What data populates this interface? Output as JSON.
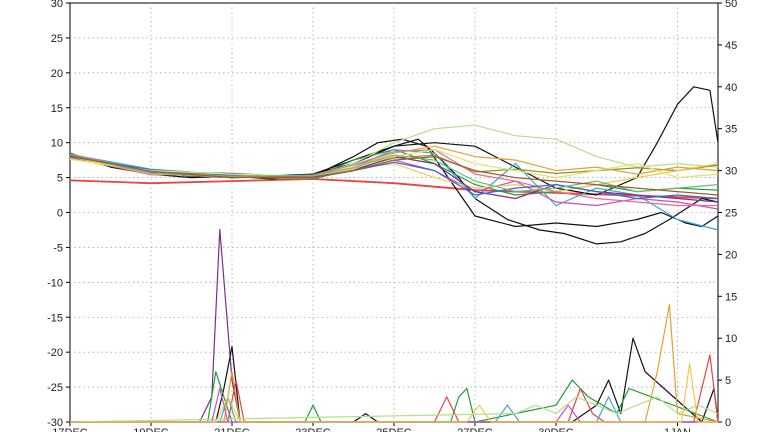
{
  "chart_data": {
    "type": "line",
    "title": "",
    "xlabel": "",
    "ylabel": "",
    "y_left": {
      "range": [
        -30,
        30
      ],
      "ticks": [
        30,
        25,
        20,
        15,
        10,
        5,
        0,
        -5,
        -10,
        -15,
        -20,
        -25,
        -30
      ]
    },
    "y_right": {
      "range": [
        0,
        50
      ],
      "ticks": [
        50,
        45,
        40,
        35,
        30,
        25,
        20,
        15,
        10,
        5,
        0
      ]
    },
    "x_range": [
      0,
      16
    ],
    "x_ticks": [
      {
        "x": 0,
        "label": "17DEC"
      },
      {
        "x": 2,
        "label": "19DEC"
      },
      {
        "x": 4,
        "label": "21DEC"
      },
      {
        "x": 6,
        "label": "23DEC"
      },
      {
        "x": 8,
        "label": "25DEC"
      },
      {
        "x": 10,
        "label": "27DEC"
      },
      {
        "x": 12,
        "label": "30DEC"
      },
      {
        "x": 15,
        "label": "1JAN"
      }
    ],
    "grid": true,
    "legend": "none",
    "upper_series": [
      {
        "color": "#e8433f",
        "x": [
          0,
          2,
          4,
          6,
          8,
          10,
          12,
          14,
          16
        ],
        "y": [
          4.6,
          4.2,
          4.5,
          4.8,
          4.2,
          3.2,
          2.8,
          2.4,
          2.0
        ]
      },
      {
        "color": "#111111",
        "x": [
          0,
          1,
          2,
          3,
          4,
          5,
          6,
          7,
          8,
          8.6,
          9,
          9.6,
          10,
          10.8,
          11.6,
          12.2,
          13,
          13.6,
          14.2,
          14.8,
          15.2,
          15.6,
          16
        ],
        "y": [
          8.5,
          6.5,
          5.5,
          5.0,
          5.2,
          4.8,
          5.5,
          7.0,
          9.5,
          10.5,
          8.5,
          5.0,
          2.0,
          -1.0,
          -2.5,
          -3.0,
          -4.5,
          -4.2,
          -3.0,
          -1.0,
          0.5,
          2.0,
          1.5
        ]
      },
      {
        "color": "#111111",
        "x": [
          0,
          1,
          2,
          3,
          4,
          5,
          6,
          7,
          7.6,
          8.2,
          8.8,
          9.4,
          10,
          11,
          12,
          13,
          14,
          14.6,
          15.2,
          15.6,
          16
        ],
        "y": [
          8.2,
          6.8,
          5.8,
          5.2,
          5.0,
          5.2,
          5.2,
          8.0,
          10.0,
          10.5,
          9.5,
          4.5,
          -0.5,
          -2.0,
          -1.5,
          -2.0,
          -1.0,
          0.0,
          -1.5,
          -2.0,
          -0.5
        ]
      },
      {
        "color": "#111111",
        "x": [
          0,
          2,
          4,
          6,
          7,
          8,
          9,
          10,
          11,
          12,
          13,
          14,
          14.5,
          15,
          15.4,
          15.8,
          16
        ],
        "y": [
          8.0,
          5.8,
          5.0,
          5.5,
          7.5,
          9.5,
          10.0,
          9.5,
          6.5,
          3.5,
          2.5,
          5.0,
          10.0,
          15.5,
          18.0,
          17.5,
          10.0
        ]
      },
      {
        "color": "#1f9e3a",
        "x": [
          0,
          2,
          4,
          6,
          7,
          8,
          9,
          10,
          11,
          12,
          13,
          14,
          15,
          16
        ],
        "y": [
          8.0,
          6.0,
          5.2,
          5.0,
          7.5,
          9.0,
          7.0,
          4.0,
          2.5,
          3.0,
          4.0,
          3.0,
          3.5,
          3.2
        ]
      },
      {
        "color": "#b4e08a",
        "x": [
          0,
          2,
          4,
          6,
          7,
          8,
          9,
          10,
          11,
          12,
          13,
          14,
          15,
          16
        ],
        "y": [
          7.8,
          5.6,
          5.0,
          5.2,
          7.0,
          10.0,
          12.0,
          12.5,
          11.0,
          10.5,
          8.0,
          6.5,
          7.0,
          6.5
        ]
      },
      {
        "color": "#3aa7d8",
        "x": [
          0,
          2,
          4,
          6,
          7,
          8,
          9,
          10,
          11,
          12,
          13,
          14,
          15,
          16
        ],
        "y": [
          8.3,
          6.2,
          5.4,
          5.2,
          6.5,
          9.0,
          8.5,
          2.0,
          7.0,
          1.0,
          3.5,
          2.5,
          -1.0,
          -2.5
        ]
      },
      {
        "color": "#c84fc0",
        "x": [
          0,
          2,
          4,
          6,
          7,
          8,
          9,
          10,
          11,
          12,
          13,
          14,
          15,
          16
        ],
        "y": [
          7.9,
          5.4,
          5.4,
          5.0,
          6.0,
          7.5,
          6.0,
          3.0,
          4.5,
          1.5,
          1.0,
          2.0,
          1.5,
          0.5
        ]
      },
      {
        "color": "#9b8a2e",
        "x": [
          0,
          2,
          4,
          6,
          7,
          8,
          9,
          10,
          11,
          12,
          13,
          14,
          15,
          16
        ],
        "y": [
          8.1,
          5.9,
          5.1,
          4.8,
          6.2,
          7.8,
          8.2,
          5.8,
          6.2,
          5.6,
          6.0,
          6.4,
          6.0,
          6.8
        ]
      },
      {
        "color": "#f2c94c",
        "x": [
          0,
          2,
          4,
          6,
          7,
          8,
          9,
          10,
          11,
          12,
          13,
          14,
          15,
          16
        ],
        "y": [
          8.0,
          5.5,
          5.3,
          5.1,
          6.2,
          7.0,
          5.0,
          3.5,
          4.0,
          3.0,
          4.0,
          5.0,
          6.0,
          7.0
        ]
      },
      {
        "color": "#e7a030",
        "x": [
          0,
          2,
          4,
          6,
          7,
          8,
          9,
          10,
          11,
          12,
          13,
          14,
          15,
          16
        ],
        "y": [
          7.7,
          5.7,
          5.0,
          5.3,
          6.5,
          8.5,
          9.5,
          8.0,
          7.5,
          6.0,
          6.5,
          5.5,
          6.5,
          6.0
        ]
      },
      {
        "color": "#7a2f8c",
        "x": [
          0,
          2,
          4,
          6,
          7,
          8,
          9,
          10,
          11,
          12,
          13,
          14,
          15,
          16
        ],
        "y": [
          8.2,
          5.8,
          5.6,
          5.0,
          6.0,
          8.0,
          7.0,
          3.0,
          2.0,
          4.0,
          3.0,
          2.5,
          2.0,
          1.5
        ]
      },
      {
        "color": "#e56b9b",
        "x": [
          0,
          2,
          4,
          6,
          7,
          8,
          9,
          10,
          11,
          12,
          13,
          14,
          15,
          16
        ],
        "y": [
          8.4,
          5.7,
          5.0,
          5.4,
          6.8,
          8.7,
          9.0,
          5.5,
          4.5,
          3.0,
          2.0,
          1.5,
          1.0,
          1.0
        ]
      },
      {
        "color": "#2f6fd0",
        "x": [
          0,
          2,
          4,
          6,
          7,
          8,
          9,
          10,
          11,
          12,
          13,
          14,
          15,
          16
        ],
        "y": [
          8.0,
          6.1,
          5.3,
          5.0,
          6.0,
          7.2,
          6.0,
          2.5,
          3.5,
          4.0,
          3.0,
          2.0,
          2.5,
          2.0
        ]
      },
      {
        "color": "#d9e86a",
        "x": [
          0,
          2,
          4,
          6,
          7,
          8,
          9,
          10,
          11,
          12,
          13,
          14,
          15,
          16
        ],
        "y": [
          7.6,
          6.0,
          5.5,
          5.2,
          6.5,
          8.0,
          9.0,
          7.0,
          6.0,
          5.0,
          6.0,
          7.0,
          5.0,
          5.5
        ]
      },
      {
        "color": "#5fbf7f",
        "x": [
          0,
          2,
          4,
          6,
          7,
          8,
          9,
          10,
          11,
          12,
          13,
          14,
          15,
          16
        ],
        "y": [
          8.3,
          5.6,
          5.2,
          5.3,
          6.4,
          8.2,
          7.5,
          4.5,
          3.0,
          3.5,
          4.5,
          3.0,
          3.5,
          4.0
        ]
      },
      {
        "color": "#a35a2a",
        "x": [
          0,
          2,
          4,
          6,
          7,
          8,
          9,
          10,
          11,
          12,
          13,
          14,
          15,
          16
        ],
        "y": [
          8.1,
          5.9,
          5.0,
          5.1,
          6.0,
          7.5,
          8.0,
          6.0,
          5.0,
          4.5,
          4.0,
          3.5,
          3.0,
          2.5
        ]
      }
    ],
    "lower_series": [
      {
        "color": "#7a2f8c",
        "x": [
          0,
          3.2,
          3.5,
          3.7,
          4.0,
          4.2,
          16
        ],
        "y": [
          0,
          0,
          3,
          23,
          5,
          0,
          0
        ]
      },
      {
        "color": "#111111",
        "x": [
          0,
          3.6,
          3.8,
          4.0,
          4.2,
          7.0,
          7.3,
          7.6,
          12.4,
          13.0,
          13.3,
          13.6,
          13.9,
          14.2,
          15.6,
          15.9,
          16
        ],
        "y": [
          0,
          0,
          4,
          9,
          0,
          0,
          1,
          0,
          0,
          2,
          5,
          1,
          10,
          6,
          0,
          4,
          0
        ]
      },
      {
        "color": "#1f9e3a",
        "x": [
          0,
          3.4,
          3.6,
          3.8,
          4.0,
          5.8,
          6.0,
          6.2,
          9.4,
          9.6,
          9.8,
          10.0,
          12.0,
          12.4,
          12.8,
          13.5,
          13.8,
          16
        ],
        "y": [
          0,
          0,
          6,
          3,
          0,
          0,
          2,
          0,
          0,
          3,
          4,
          0,
          2,
          5,
          3,
          1,
          4,
          0
        ]
      },
      {
        "color": "#e7a030",
        "x": [
          0,
          3.8,
          4.0,
          4.2,
          14.2,
          14.5,
          14.8,
          15.0,
          16
        ],
        "y": [
          0,
          0,
          6,
          0,
          0,
          6,
          14,
          1,
          0
        ]
      },
      {
        "color": "#e8433f",
        "x": [
          0,
          3.9,
          4.1,
          4.3,
          9.0,
          9.3,
          9.6,
          12.3,
          12.6,
          12.9,
          13.2,
          15.4,
          15.8,
          16
        ],
        "y": [
          0,
          0,
          5,
          0,
          0,
          3,
          0,
          0,
          4,
          1,
          0,
          0,
          8,
          0
        ]
      },
      {
        "color": "#3aa7d8",
        "x": [
          0,
          3.7,
          3.9,
          4.1,
          10.5,
          10.8,
          11.1,
          13.0,
          13.3,
          13.6,
          16
        ],
        "y": [
          0,
          0,
          3,
          0,
          0,
          2,
          0,
          0,
          3,
          0,
          0
        ]
      },
      {
        "color": "#b4e08a",
        "x": [
          0,
          11.0,
          11.5,
          12.0,
          12.5,
          13.0,
          13.5,
          14.0,
          14.5,
          15.0,
          15.5,
          16
        ],
        "y": [
          0,
          1,
          2,
          1,
          3,
          2,
          1,
          2,
          3,
          1,
          2,
          1
        ]
      },
      {
        "color": "#c84fc0",
        "x": [
          0,
          3.5,
          3.7,
          3.9,
          12.0,
          12.3,
          12.6,
          16
        ],
        "y": [
          0,
          0,
          4,
          0,
          0,
          2,
          0,
          0
        ]
      },
      {
        "color": "#f2c94c",
        "x": [
          0,
          3.6,
          3.9,
          4.2,
          9.8,
          10.1,
          10.4,
          15.1,
          15.3,
          15.5,
          16
        ],
        "y": [
          0,
          0,
          3,
          0,
          0,
          2,
          0,
          0,
          7,
          0,
          0
        ]
      }
    ]
  }
}
